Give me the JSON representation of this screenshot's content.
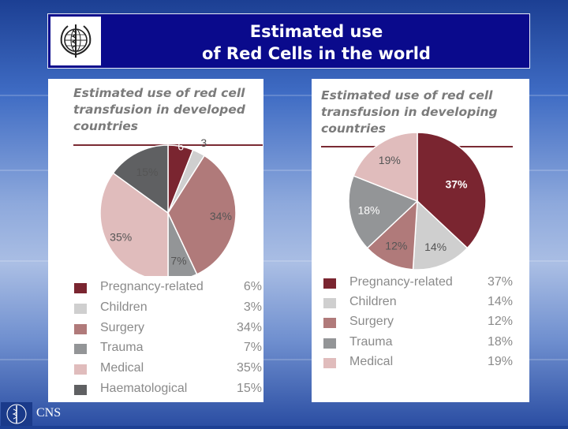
{
  "header": {
    "title_line1": "Estimated use",
    "title_line2": "of Red Cells in the world"
  },
  "footer": {
    "label": "CNS"
  },
  "chart_data": [
    {
      "type": "pie",
      "title_lines": [
        "Estimated use of red cell",
        "transfusion in developed",
        "countries"
      ],
      "categories": [
        "Pregnancy-related",
        "Children",
        "Surgery",
        "Trauma",
        "Medical",
        "Haematological"
      ],
      "values": [
        6,
        3,
        34,
        7,
        35,
        15
      ],
      "value_labels": [
        "6%",
        "3%",
        "34%",
        "7%",
        "35%",
        "15%"
      ],
      "slice_labels": [
        "6",
        "3",
        "34%",
        "7%",
        "35%",
        "15%"
      ],
      "colors": [
        "#7a2530",
        "#cfcfcf",
        "#b07a7a",
        "#939597",
        "#e0bcbc",
        "#5f6062"
      ],
      "legend_position": "bottom"
    },
    {
      "type": "pie",
      "title_lines": [
        "Estimated use of red cell",
        "transfusion in developing",
        "countries"
      ],
      "categories": [
        "Pregnancy-related",
        "Children",
        "Surgery",
        "Trauma",
        "Medical"
      ],
      "values": [
        37,
        14,
        12,
        18,
        19
      ],
      "value_labels": [
        "37%",
        "14%",
        "12%",
        "18%",
        "19%"
      ],
      "slice_labels": [
        "37%",
        "14%",
        "12%",
        "18%",
        "19%"
      ],
      "colors": [
        "#7a2530",
        "#cfcfcf",
        "#b07a7a",
        "#939597",
        "#e0bcbc"
      ],
      "legend_position": "bottom"
    }
  ]
}
